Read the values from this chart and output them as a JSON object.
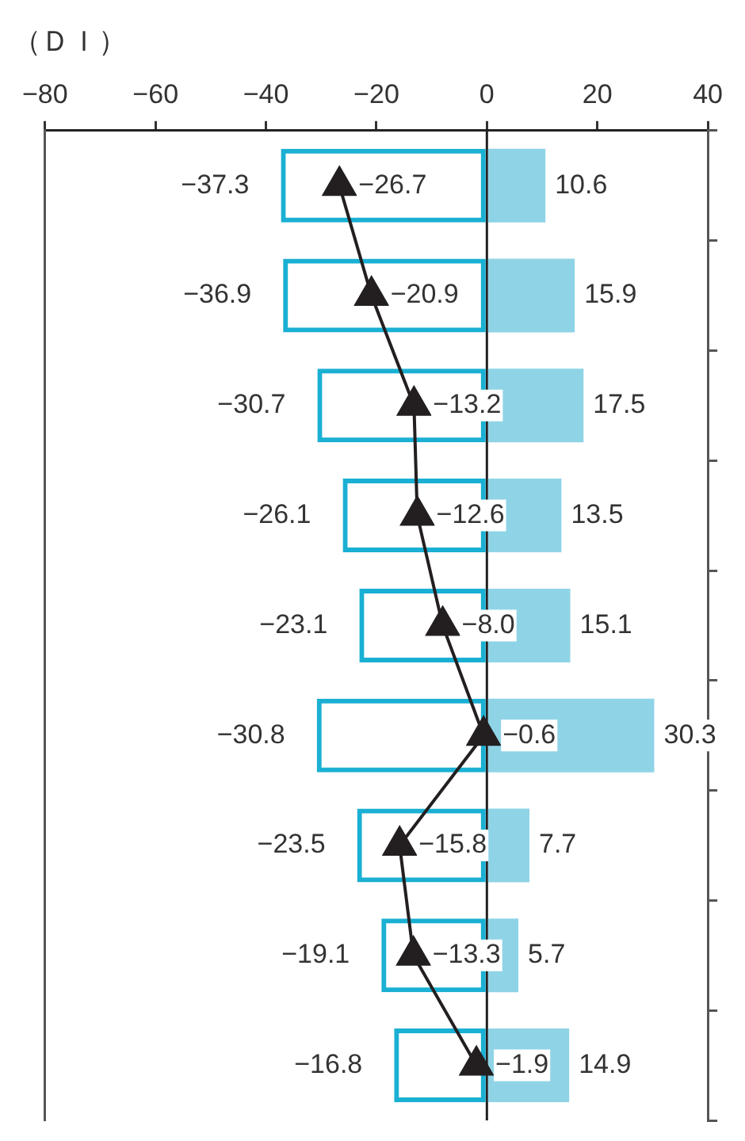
{
  "chart_data": {
    "type": "bar",
    "orientation": "horizontal",
    "stacked": true,
    "xlabel": "（ＤＩ）",
    "categories": [
      null,
      null,
      null,
      null,
      null,
      null,
      null,
      null,
      null
    ],
    "series": [
      {
        "color": "#1ab0d3",
        "values": [
          -37.3,
          -36.9,
          -30.7,
          -26.1,
          -23.1,
          -30.8,
          -23.5,
          -19.1,
          -16.8
        ],
        "value_labels": [
          "−37.3",
          "−36.9",
          "−30.7",
          "−26.1",
          "−23.1",
          "−30.8",
          "−23.5",
          "−19.1",
          "−16.8"
        ]
      },
      {
        "color": "#8fd4e6",
        "values": [
          10.6,
          15.9,
          17.5,
          13.5,
          15.1,
          30.3,
          7.7,
          5.7,
          14.9
        ],
        "value_labels": [
          "10.6",
          "15.9",
          "17.5",
          "13.5",
          "15.1",
          "30.3",
          "7.7",
          "5.7",
          "14.9"
        ]
      },
      {
        "type": "line",
        "color": "#231f20",
        "marker": "triangle",
        "values": [
          -26.7,
          -20.9,
          -13.2,
          -12.6,
          -8.0,
          -0.6,
          -15.8,
          -13.3,
          -1.9
        ],
        "value_labels": [
          "−26.7",
          "−20.9",
          "−13.2",
          "−12.6",
          "−8.0",
          "−0.6",
          "−15.8",
          "−13.3",
          "−1.9"
        ]
      }
    ],
    "xlim": [
      -80,
      40
    ],
    "xticks": [
      {
        "value": -80,
        "label": "−80"
      },
      {
        "value": -60,
        "label": "−60"
      },
      {
        "value": -40,
        "label": "−40"
      },
      {
        "value": -20,
        "label": "−20"
      },
      0,
      20,
      40
    ],
    "ref_lines": [
      {
        "axis": "x",
        "value": 0,
        "color": "#222222"
      }
    ],
    "grid": false,
    "legend": false
  }
}
